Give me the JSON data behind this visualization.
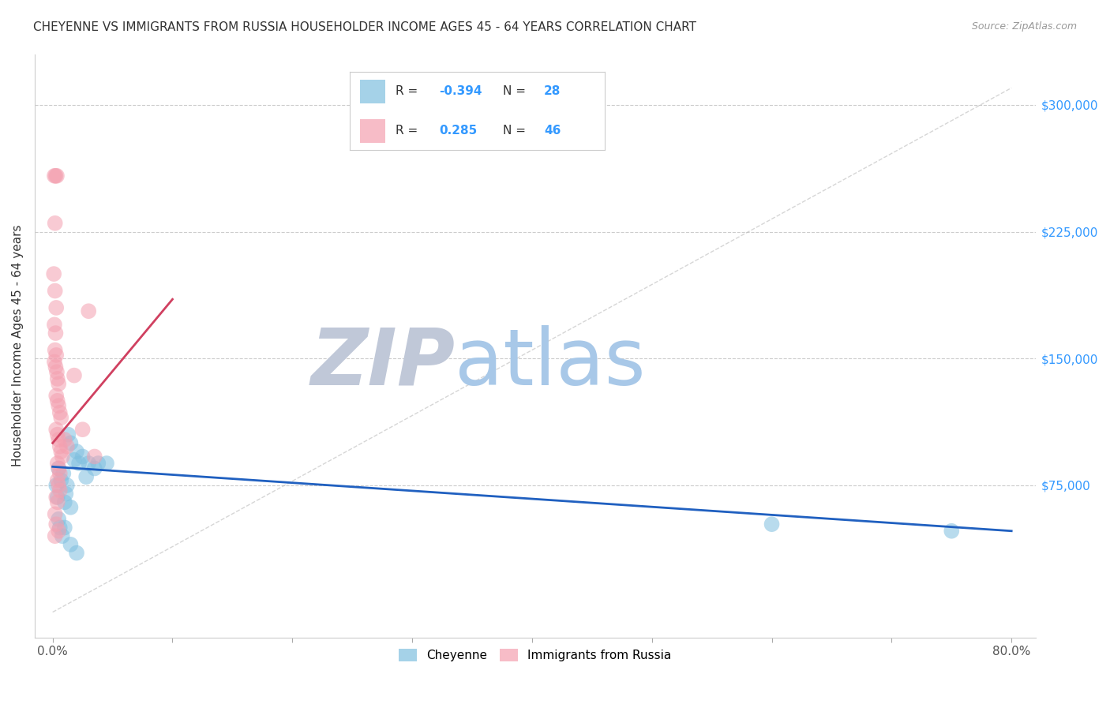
{
  "title": "CHEYENNE VS IMMIGRANTS FROM RUSSIA HOUSEHOLDER INCOME AGES 45 - 64 YEARS CORRELATION CHART",
  "source": "Source: ZipAtlas.com",
  "ylabel": "Householder Income Ages 45 - 64 years",
  "legend_blue_label": "Cheyenne",
  "legend_pink_label": "Immigrants from Russia",
  "blue_scatter": [
    [
      0.5,
      85000
    ],
    [
      0.7,
      78000
    ],
    [
      0.9,
      82000
    ],
    [
      1.1,
      70000
    ],
    [
      1.3,
      105000
    ],
    [
      1.5,
      100000
    ],
    [
      1.8,
      90000
    ],
    [
      2.0,
      95000
    ],
    [
      2.2,
      88000
    ],
    [
      2.5,
      92000
    ],
    [
      3.0,
      88000
    ],
    [
      3.5,
      85000
    ],
    [
      3.8,
      88000
    ],
    [
      4.5,
      88000
    ],
    [
      0.3,
      75000
    ],
    [
      0.4,
      68000
    ],
    [
      1.0,
      65000
    ],
    [
      1.5,
      62000
    ],
    [
      1.2,
      75000
    ],
    [
      2.8,
      80000
    ],
    [
      0.5,
      55000
    ],
    [
      0.6,
      50000
    ],
    [
      0.8,
      45000
    ],
    [
      1.0,
      50000
    ],
    [
      1.5,
      40000
    ],
    [
      2.0,
      35000
    ],
    [
      60.0,
      52000
    ],
    [
      75.0,
      48000
    ]
  ],
  "pink_scatter": [
    [
      0.15,
      258000
    ],
    [
      0.25,
      258000
    ],
    [
      0.35,
      258000
    ],
    [
      0.2,
      230000
    ],
    [
      0.1,
      200000
    ],
    [
      0.2,
      190000
    ],
    [
      0.3,
      180000
    ],
    [
      0.15,
      170000
    ],
    [
      0.25,
      165000
    ],
    [
      0.2,
      155000
    ],
    [
      0.3,
      152000
    ],
    [
      0.15,
      148000
    ],
    [
      0.25,
      145000
    ],
    [
      0.35,
      142000
    ],
    [
      0.4,
      138000
    ],
    [
      0.5,
      135000
    ],
    [
      0.3,
      128000
    ],
    [
      0.4,
      125000
    ],
    [
      0.5,
      122000
    ],
    [
      0.6,
      118000
    ],
    [
      0.7,
      115000
    ],
    [
      0.3,
      108000
    ],
    [
      0.4,
      105000
    ],
    [
      0.5,
      102000
    ],
    [
      0.6,
      98000
    ],
    [
      0.7,
      95000
    ],
    [
      0.8,
      92000
    ],
    [
      1.0,
      102000
    ],
    [
      1.2,
      98000
    ],
    [
      0.4,
      88000
    ],
    [
      0.5,
      85000
    ],
    [
      0.6,
      82000
    ],
    [
      0.4,
      78000
    ],
    [
      0.5,
      75000
    ],
    [
      0.6,
      72000
    ],
    [
      0.3,
      68000
    ],
    [
      0.4,
      65000
    ],
    [
      0.2,
      58000
    ],
    [
      0.3,
      52000
    ],
    [
      0.5,
      48000
    ],
    [
      0.2,
      45000
    ],
    [
      3.0,
      178000
    ],
    [
      1.8,
      140000
    ],
    [
      2.5,
      108000
    ],
    [
      3.5,
      92000
    ]
  ],
  "blue_line_x": [
    0.0,
    80.0
  ],
  "blue_line_y": [
    86000,
    48000
  ],
  "pink_line_x": [
    0.0,
    10.0
  ],
  "pink_line_y": [
    100000,
    185000
  ],
  "diagonal_line_x": [
    0.0,
    80.0
  ],
  "diagonal_line_y": [
    0,
    310000
  ],
  "xmin": -1.5,
  "xmax": 82,
  "ymin": -15000,
  "ymax": 330000,
  "yticks": [
    75000,
    150000,
    225000,
    300000
  ],
  "ytick_labels": [
    "$75,000",
    "$150,000",
    "$225,000",
    "$300,000"
  ],
  "xtick_positions": [
    0,
    10,
    20,
    30,
    40,
    50,
    60,
    70,
    80
  ],
  "bg_color": "#ffffff",
  "blue_color": "#7fbfdf",
  "pink_color": "#f4a0b0",
  "blue_line_color": "#2060c0",
  "pink_line_color": "#d04060",
  "grid_color": "#cccccc",
  "title_color": "#333333",
  "right_tick_color": "#3399ff",
  "watermark_zip_color": "#c0c8d8",
  "watermark_atlas_color": "#a8c8e8"
}
